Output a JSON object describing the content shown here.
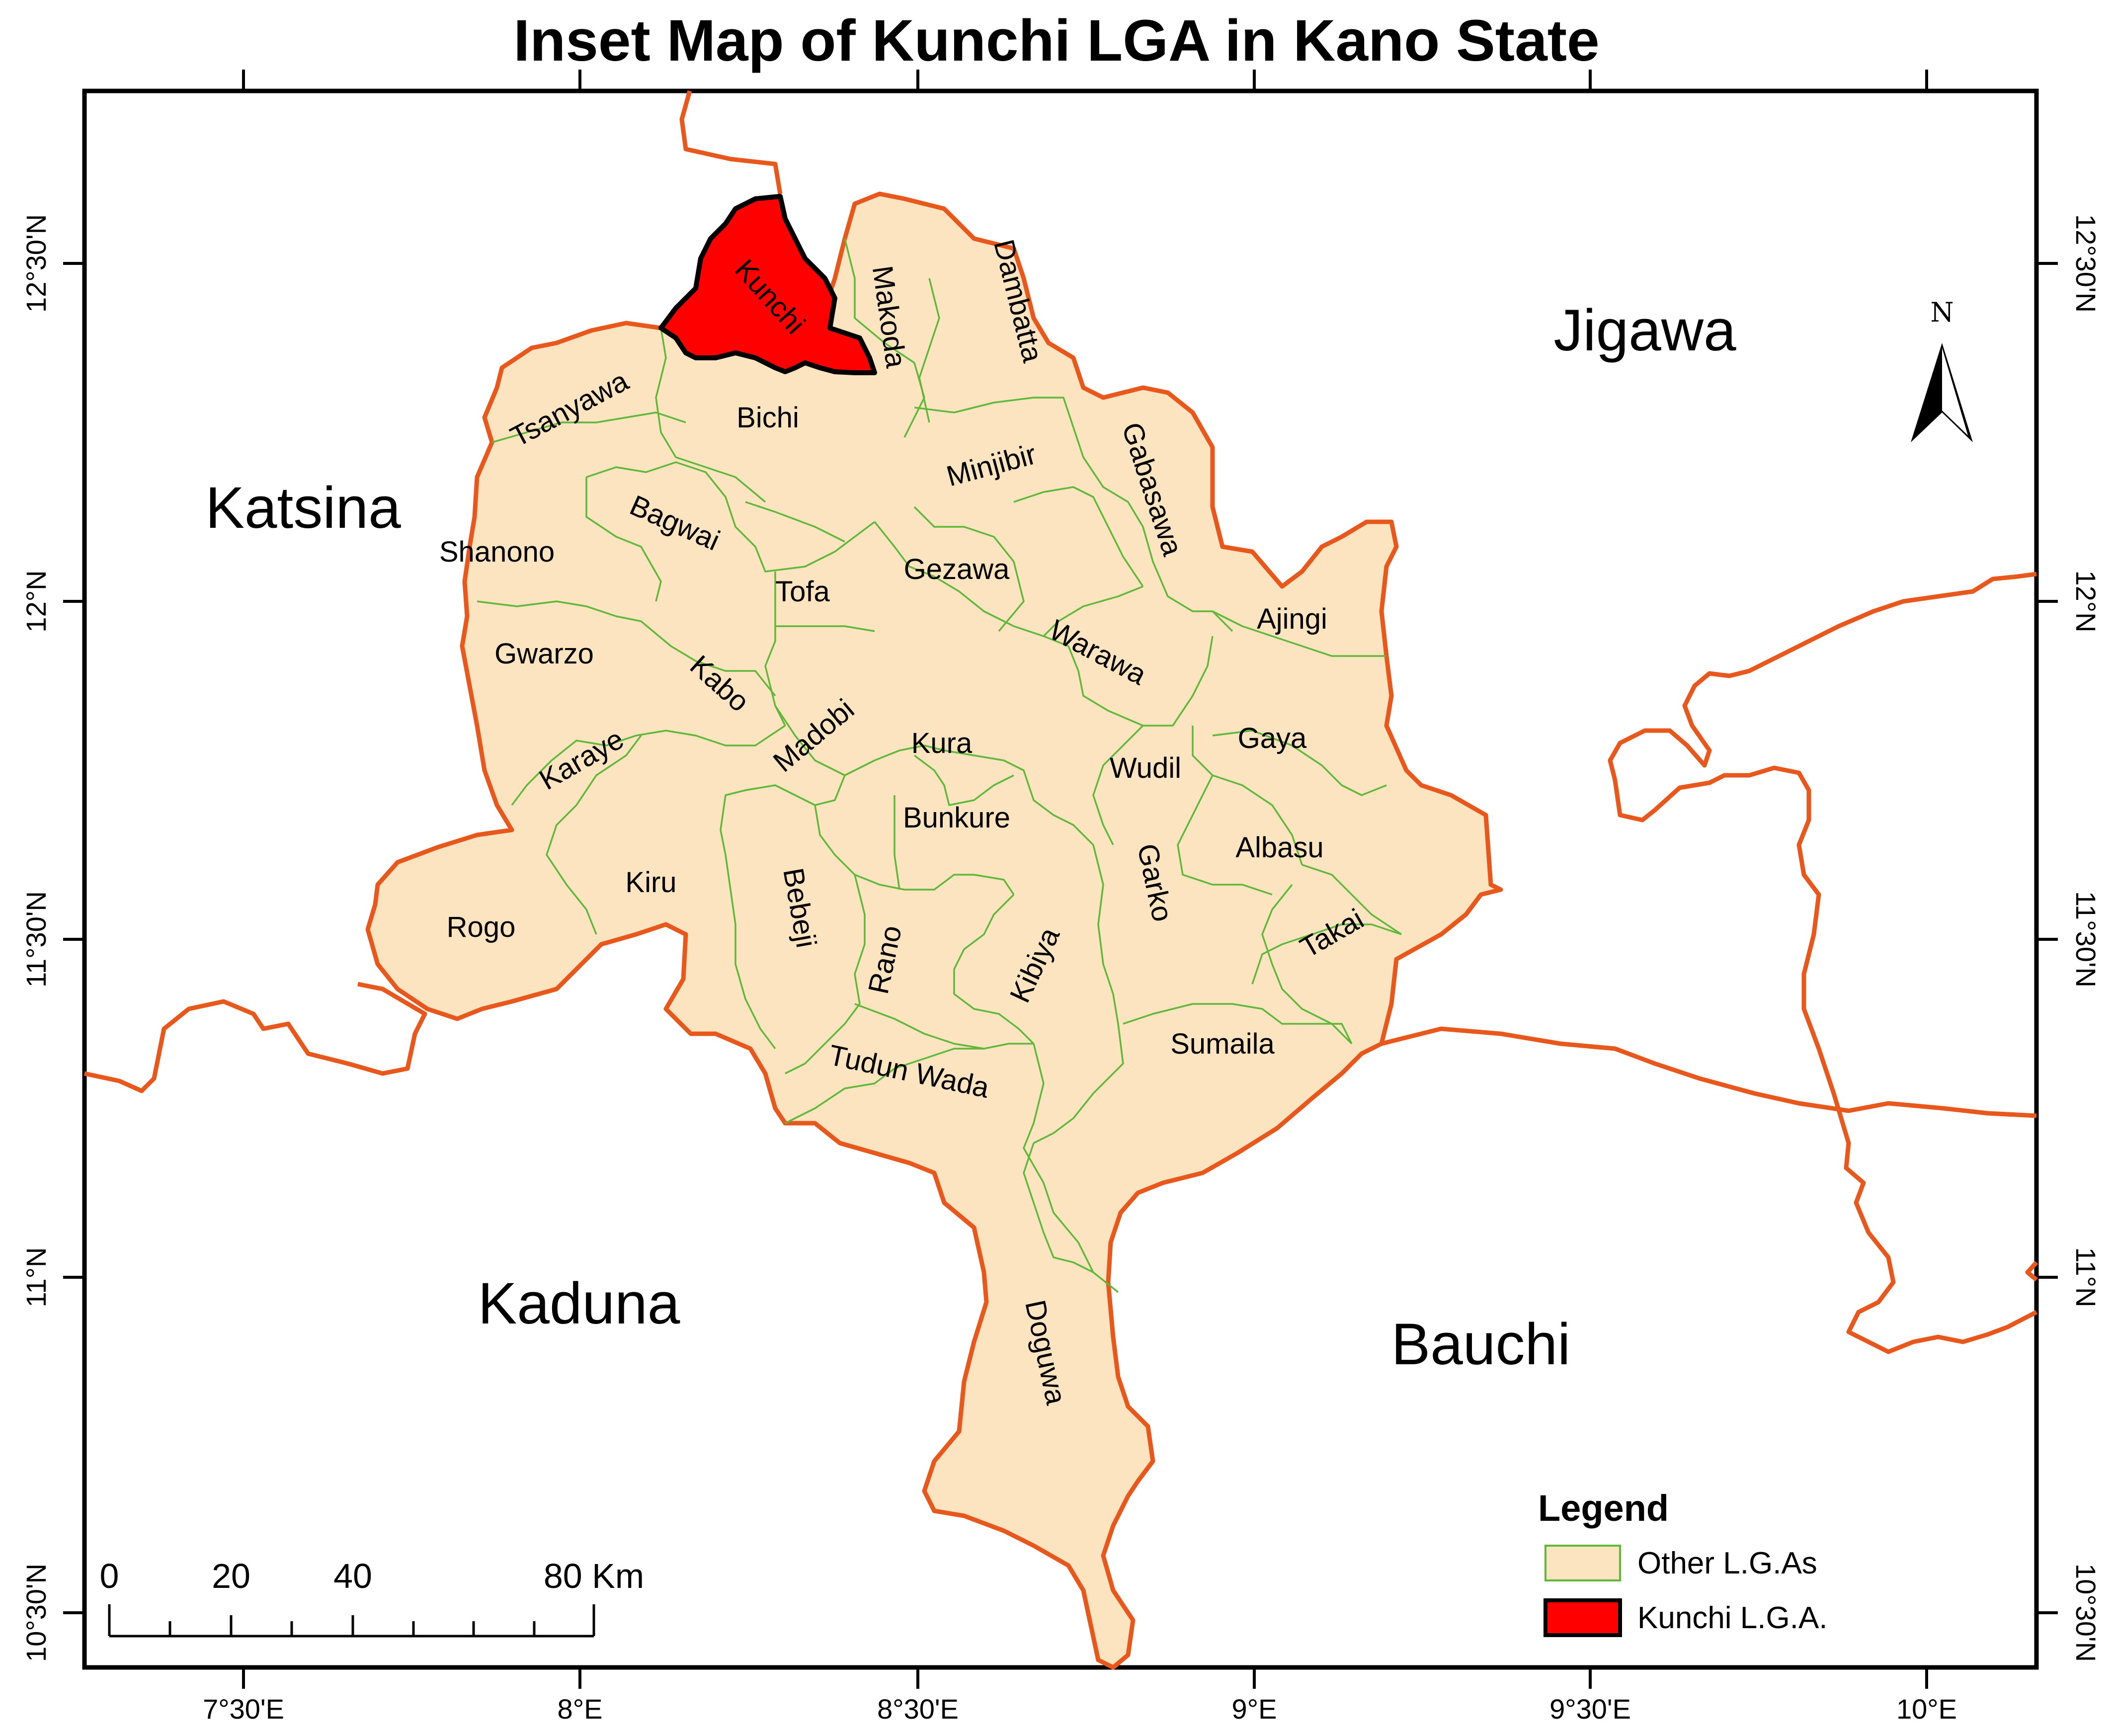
{
  "title": "Inset Map of Kunchi LGA  in Kano State",
  "top_ticks": [
    "7°30'E",
    "8°E",
    "8°30'E",
    "9°E",
    "9°30'E",
    "10°E"
  ],
  "lat_ticks": [
    "12°30'N",
    "12°N",
    "11°30'N",
    "11°N",
    "10°30'N"
  ],
  "states": {
    "jigawa": "Jigawa",
    "katsina": "Katsina",
    "kaduna": "Kaduna",
    "bauchi": "Bauchi"
  },
  "lgas": {
    "kunchi": "Kunchi",
    "makoda": "Makoda",
    "dambatta": "Dambatta",
    "tsanyawa": "Tsanyawa",
    "bichi": "Bichi",
    "minjibir": "Minjibir",
    "gabasawa": "Gabasawa",
    "shanono": "Shanono",
    "bagwai": "Bagwai",
    "tofa": "Tofa",
    "gezawa": "Gezawa",
    "ajingi": "Ajingi",
    "gwarzo": "Gwarzo",
    "kabo": "Kabo",
    "warawa": "Warawa",
    "madobi": "Madobi",
    "kura": "Kura",
    "gaya": "Gaya",
    "karaye": "Karaye",
    "wudil": "Wudil",
    "bunkure": "Bunkure",
    "albasu": "Albasu",
    "kiru": "Kiru",
    "bebeji": "Bebeji",
    "garko": "Garko",
    "rogo": "Rogo",
    "rano": "Rano",
    "kibiya": "Kibiya",
    "takai": "Takai",
    "sumaila": "Sumaila",
    "tudun_wada": "Tudun Wada",
    "doguwa": "Doguwa"
  },
  "legend": {
    "title": "Legend",
    "other": "Other L.G.As",
    "kunchi": "Kunchi L.G.A."
  },
  "scale": {
    "labels": [
      "0",
      "20",
      "40",
      "80 Km"
    ]
  },
  "north": "N",
  "colors": {
    "kano_fill": "#fce4c0",
    "kunchi_fill": "#ff0000",
    "state_border": "#e8581c",
    "lga_border": "#5fb83a"
  }
}
